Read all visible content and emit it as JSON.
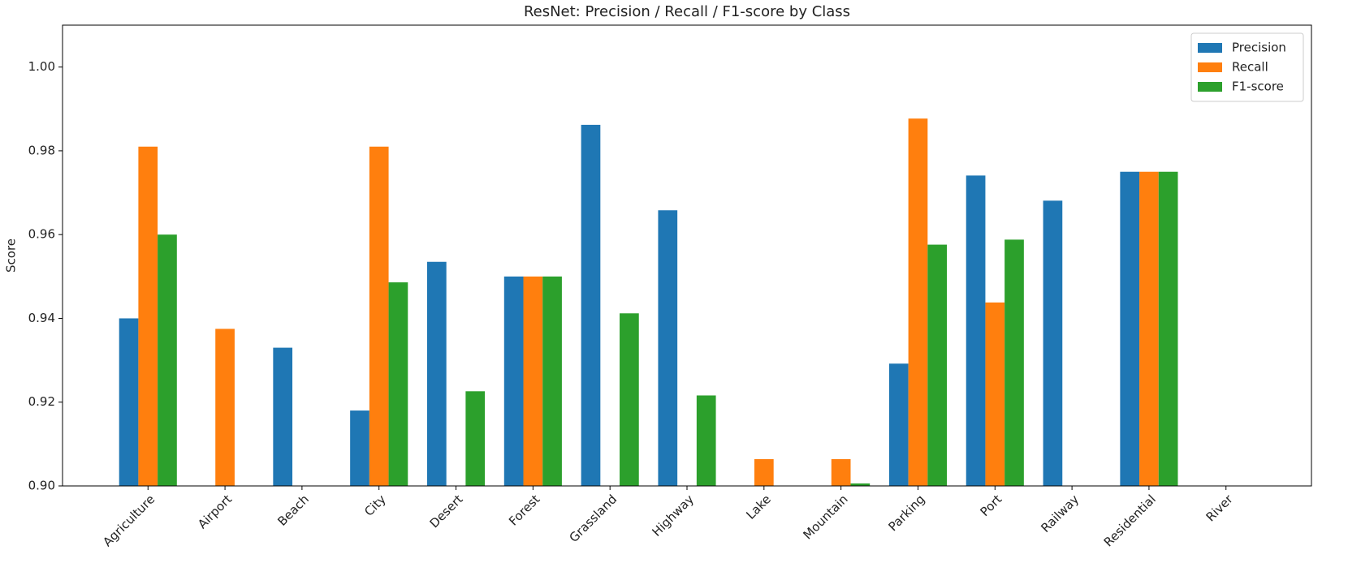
{
  "chart_data": {
    "type": "bar",
    "title": "ResNet: Precision / Recall / F1-score by Class",
    "y_label": "Score",
    "categories": [
      "Agriculture",
      "Airport",
      "Beach",
      "City",
      "Desert",
      "Forest",
      "Grassland",
      "Highway",
      "Lake",
      "Mountain",
      "Parking",
      "Port",
      "Railway",
      "Residential",
      "River"
    ],
    "series": [
      {
        "name": "Precision",
        "color": "#1f77b4",
        "values": [
          0.94,
          null,
          0.933,
          0.918,
          0.9535,
          0.95,
          0.9862,
          0.9658,
          null,
          null,
          0.9292,
          0.9741,
          0.9681,
          0.975,
          null
        ]
      },
      {
        "name": "Recall",
        "color": "#ff7f0e",
        "values": [
          0.981,
          0.9375,
          null,
          0.981,
          null,
          0.95,
          null,
          null,
          0.9064,
          0.9064,
          0.9877,
          0.9438,
          null,
          0.975,
          null
        ]
      },
      {
        "name": "F1-score",
        "color": "#2ca02c",
        "values": [
          0.96,
          null,
          null,
          0.9486,
          0.9226,
          0.95,
          0.9412,
          0.9216,
          null,
          0.9006,
          0.9576,
          0.9588,
          null,
          0.975,
          null
        ]
      }
    ],
    "ylim": [
      0.9,
      1.01
    ],
    "yticks": [
      {
        "value": 0.9,
        "label": "0.90"
      },
      {
        "value": 0.92,
        "label": "0.92"
      },
      {
        "value": 0.94,
        "label": "0.94"
      },
      {
        "value": 0.96,
        "label": "0.96"
      },
      {
        "value": 0.98,
        "label": "0.98"
      },
      {
        "value": 1.0,
        "label": "1.00"
      }
    ],
    "legend": "upper right",
    "grid": false
  }
}
